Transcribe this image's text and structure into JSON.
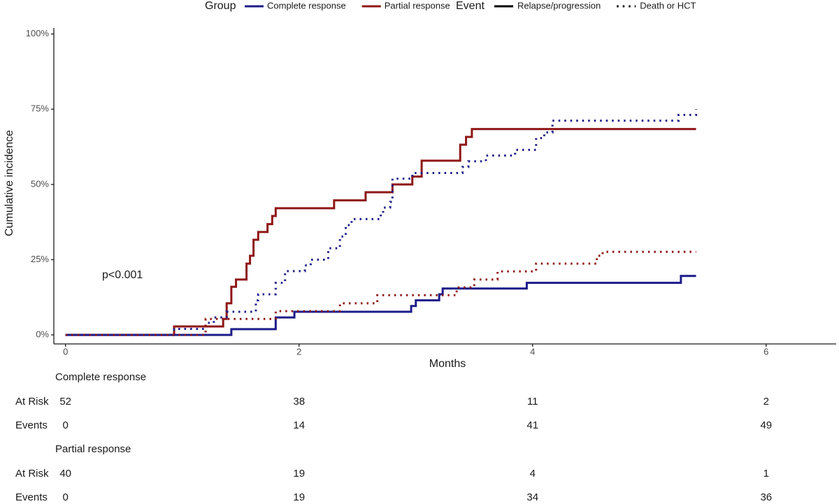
{
  "chart_data": {
    "type": "step",
    "x_label": "Months",
    "y_label": "Cumulative incidence",
    "annotation": "p<0.001",
    "xlim": [
      -0.1,
      6.6
    ],
    "xticks": [
      0,
      2,
      4,
      6
    ],
    "ylim": [
      -3,
      102
    ],
    "yticks": [
      {
        "value": 0,
        "label": "0%"
      },
      {
        "value": 25,
        "label": "25%"
      },
      {
        "value": 50,
        "label": "50%"
      },
      {
        "value": 75,
        "label": "75%"
      },
      {
        "value": 100,
        "label": "100%"
      }
    ],
    "grid": false,
    "legend": {
      "group_title": "Group",
      "groups": [
        {
          "name": "Complete response",
          "color": "#1c1c8a"
        },
        {
          "name": "Partial response",
          "color": "#8f1616"
        }
      ],
      "event_title": "Event",
      "events": [
        {
          "name": "Relapse/progression",
          "line_style": "solid"
        },
        {
          "name": "Death or HCT",
          "line_style": "dotted"
        }
      ]
    },
    "series": [
      {
        "color": "#8f1616",
        "line_style": "solid",
        "x": [
          0,
          0.93,
          1.35,
          1.38,
          1.42,
          1.46,
          1.55,
          1.58,
          1.61,
          1.65,
          1.73,
          1.77,
          1.8,
          2.3,
          2.57,
          2.8,
          2.97,
          3.05,
          3.38,
          3.43,
          3.48,
          5.4
        ],
        "values": [
          0,
          2.8,
          5.3,
          10.5,
          16,
          18.4,
          23.7,
          26.3,
          31.6,
          34.2,
          36.8,
          39.5,
          42.1,
          44.7,
          47.4,
          50,
          52.6,
          57.9,
          63.2,
          65.8,
          68.4,
          68.4
        ]
      },
      {
        "color": "#1c1c8a",
        "line_style": "solid",
        "x": [
          0,
          1.42,
          1.8,
          1.96,
          2.96,
          3.0,
          3.2,
          3.23,
          3.95,
          5.27,
          5.4
        ],
        "values": [
          0,
          1.9,
          5.8,
          7.7,
          9.6,
          11.5,
          13.5,
          15.4,
          17.3,
          19.6,
          19.6
        ]
      },
      {
        "color": "#1c1c8a",
        "line_style": "dotted",
        "x": [
          0,
          0.93,
          1.2,
          1.27,
          1.38,
          1.63,
          1.65,
          1.8,
          1.88,
          2.05,
          2.1,
          2.25,
          2.35,
          2.4,
          2.45,
          2.7,
          2.72,
          2.78,
          2.8,
          2.97,
          3.4,
          3.45,
          3.6,
          3.85,
          4.03,
          4.1,
          4.17,
          5.25,
          5.4
        ],
        "values": [
          0,
          2,
          4,
          5.8,
          7.7,
          11.5,
          13.5,
          17.3,
          21.2,
          23.1,
          25,
          28.8,
          32.7,
          36.5,
          38.5,
          40.4,
          42.3,
          44.2,
          51.9,
          53.8,
          55.8,
          57.7,
          59.6,
          61.5,
          65.4,
          67.3,
          71.2,
          73.1,
          75
        ]
      },
      {
        "color": "#8f1616",
        "line_style": "dotted",
        "x": [
          0,
          1.2,
          1.8,
          2.35,
          2.67,
          3.35,
          3.5,
          3.7,
          4.03,
          4.55,
          4.6,
          5.4
        ],
        "values": [
          0,
          5.3,
          7.9,
          10.5,
          13.2,
          15.8,
          18.4,
          21.1,
          23.7,
          26.3,
          27.6,
          27.6
        ]
      }
    ],
    "risk_table": [
      {
        "name": "Complete response",
        "rows": [
          {
            "label": "At Risk",
            "values": [
              52,
              38,
              11,
              2
            ]
          },
          {
            "label": "Events",
            "values": [
              0,
              14,
              41,
              49
            ]
          }
        ]
      },
      {
        "name": "Partial response",
        "rows": [
          {
            "label": "At Risk",
            "values": [
              40,
              19,
              4,
              1
            ]
          },
          {
            "label": "Events",
            "values": [
              0,
              19,
              34,
              36
            ]
          }
        ]
      }
    ]
  }
}
